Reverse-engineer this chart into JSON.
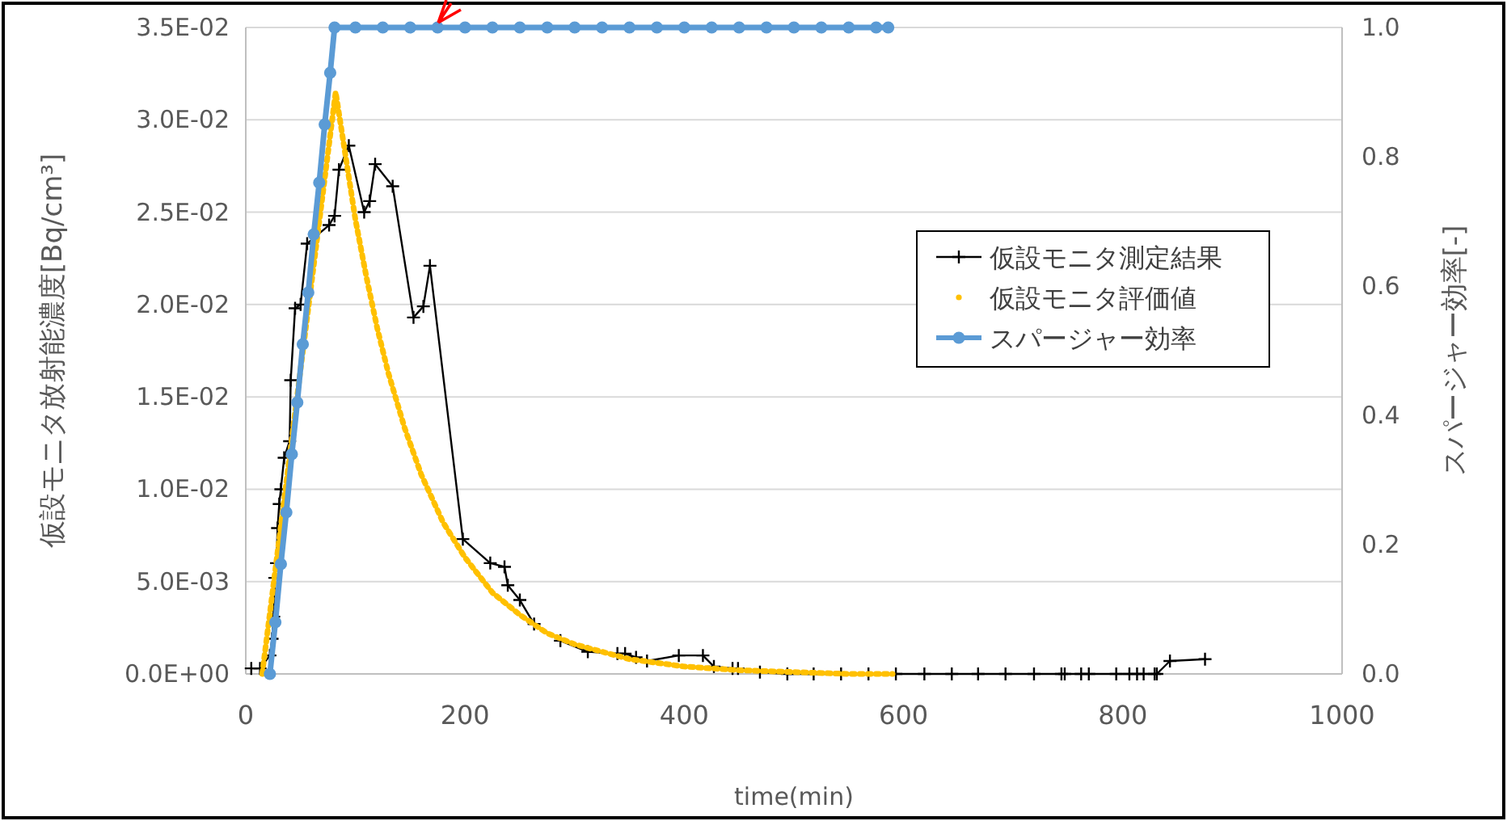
{
  "chart_data": {
    "type": "line",
    "xlabel": "time(min)",
    "ylabel": "仮設モニタ放射能濃度[Bq/cm³]",
    "y2label": "スパージャー効率[-]",
    "xlim": [
      0,
      1000
    ],
    "xticks": [
      0,
      200,
      400,
      600,
      800,
      1000
    ],
    "ylim": [
      0,
      0.035
    ],
    "yticks": [
      {
        "value": 0,
        "label": "0.0E+00"
      },
      {
        "value": 0.005,
        "label": "5.0E-03"
      },
      {
        "value": 0.01,
        "label": "1.0E-02"
      },
      {
        "value": 0.015,
        "label": "1.5E-02"
      },
      {
        "value": 0.02,
        "label": "2.0E-02"
      },
      {
        "value": 0.025,
        "label": "2.5E-02"
      },
      {
        "value": 0.03,
        "label": "3.0E-02"
      },
      {
        "value": 0.035,
        "label": "3.5E-02"
      }
    ],
    "y2lim": [
      0,
      1
    ],
    "y2ticks": [
      {
        "value": 0,
        "label": "0.0"
      },
      {
        "value": 0.2,
        "label": "0.2"
      },
      {
        "value": 0.4,
        "label": "0.4"
      },
      {
        "value": 0.6,
        "label": "0.6"
      },
      {
        "value": 0.8,
        "label": "0.8"
      },
      {
        "value": 1,
        "label": "1.0"
      }
    ],
    "grid": "y",
    "legend": "right",
    "series": [
      {
        "name": "仮設モニタ測定結果",
        "color": "#000000",
        "marker": "cross",
        "line_style": "solid",
        "x": [
          5,
          13,
          22,
          24,
          25.5,
          26.5,
          28,
          29,
          30.5,
          32,
          35,
          40,
          41,
          45,
          50,
          56,
          76,
          81,
          85,
          94,
          108,
          113,
          118,
          134,
          153,
          162,
          168,
          198,
          223,
          236,
          239,
          250,
          263,
          287,
          312,
          339,
          346,
          356,
          366,
          395,
          417,
          427,
          444,
          449,
          469,
          494,
          518,
          543,
          568,
          593,
          619,
          644,
          668,
          693,
          719,
          744,
          747,
          762,
          769,
          794,
          806,
          813,
          819,
          829,
          831,
          843,
          875
        ],
        "values": [
          0.0003,
          0.0003,
          0.001,
          0.0019,
          0.0031,
          0.0052,
          0.006,
          0.0079,
          0.0092,
          0.01,
          0.0117,
          0.0126,
          0.0159,
          0.0198,
          0.02,
          0.0233,
          0.0243,
          0.0248,
          0.0273,
          0.0286,
          0.025,
          0.0256,
          0.0276,
          0.0264,
          0.0193,
          0.0199,
          0.0221,
          0.0073,
          0.006,
          0.0058,
          0.0048,
          0.004,
          0.0027,
          0.0018,
          0.0012,
          0.0011,
          0.0011,
          0.0009,
          0.0007,
          0.001,
          0.001,
          0.0004,
          0.0003,
          0.0003,
          0.0001,
          0,
          0,
          0,
          0,
          0,
          0,
          0,
          0,
          0,
          0,
          0,
          0,
          0,
          0,
          0,
          0,
          0,
          0,
          0,
          0,
          0.0007,
          0.0008
        ]
      },
      {
        "name": "仮設モニタ評価値",
        "color": "#ffc000",
        "marker": "none",
        "line_style": "dotted",
        "x": [
          15,
          50,
          82,
          100,
          110,
          120,
          130,
          145,
          160,
          180,
          200,
          225,
          250,
          275,
          300,
          350,
          400,
          450,
          500,
          550,
          590
        ],
        "values": [
          0,
          0.0165,
          0.0315,
          0.0246,
          0.0215,
          0.0187,
          0.0163,
          0.0133,
          0.0108,
          0.0082,
          0.0063,
          0.0044,
          0.0032,
          0.0022,
          0.0016,
          0.0008,
          0.0004,
          0.0002,
          0.0001,
          0,
          0
        ]
      },
      {
        "name": "スパージャー効率",
        "color": "#5b9bd5",
        "marker": "circle",
        "line_style": "solid",
        "axis": "y2",
        "x": [
          22,
          27,
          32,
          37,
          42,
          47,
          52,
          57,
          62,
          67,
          72,
          77,
          81,
          100,
          125,
          150,
          175,
          200,
          225,
          250,
          275,
          300,
          325,
          350,
          375,
          400,
          425,
          450,
          475,
          500,
          525,
          550,
          575,
          586
        ],
        "values": [
          0,
          0.08,
          0.17,
          0.25,
          0.34,
          0.42,
          0.51,
          0.59,
          0.68,
          0.76,
          0.85,
          0.93,
          1,
          1,
          1,
          1,
          1,
          1,
          1,
          1,
          1,
          1,
          1,
          1,
          1,
          1,
          1,
          1,
          1,
          1,
          1,
          1,
          1,
          1
        ]
      }
    ]
  }
}
